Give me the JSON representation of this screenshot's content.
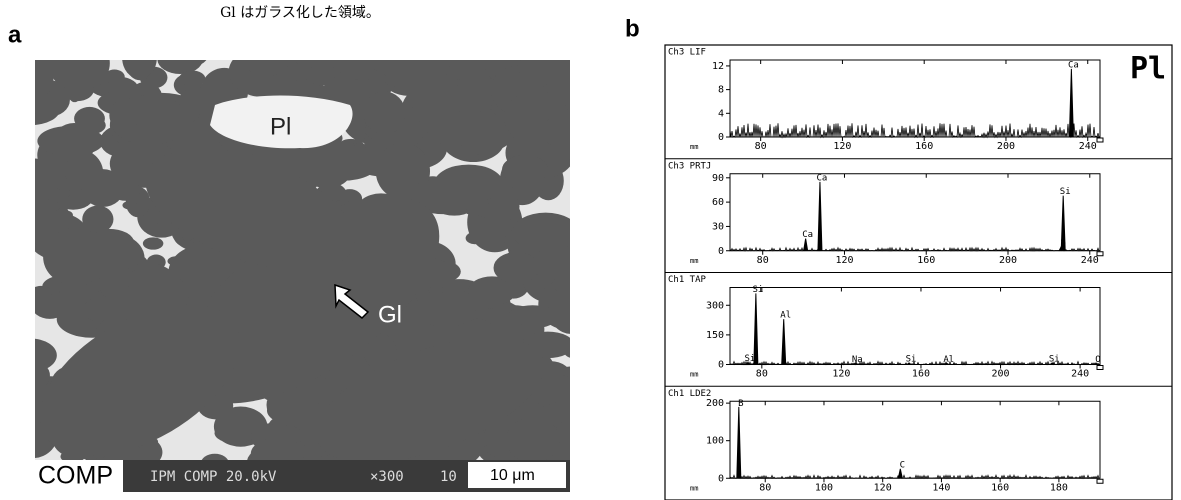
{
  "caption": "Gl はガラス化した領域。",
  "panel_a": {
    "label": "a",
    "micrograph": {
      "labels": [
        "Pl",
        "Gl"
      ],
      "footer": {
        "mode": "COMP",
        "info": "IPM COMP  20.0kV",
        "magnification": "×300",
        "number": "10",
        "scale": "10 μm"
      }
    }
  },
  "panel_b": {
    "label": "b",
    "side_label": "Pl",
    "x_unit": "mm",
    "spectra": [
      {
        "title": "Ch3 LIF",
        "xlim": [
          65,
          246
        ],
        "xticks": [
          80,
          120,
          160,
          200,
          240
        ],
        "ylim": [
          0,
          13
        ],
        "yticks": [
          0,
          4,
          8,
          12
        ],
        "peaks": [
          {
            "label": "Ca",
            "x": 232,
            "y": 11.5
          }
        ]
      },
      {
        "title": "Ch3 PRTJ",
        "xlim": [
          64,
          245
        ],
        "xticks": [
          80,
          120,
          160,
          200,
          240
        ],
        "ylim": [
          0,
          95
        ],
        "yticks": [
          0,
          30,
          60,
          90
        ],
        "peaks": [
          {
            "label": "Ca",
            "x": 101,
            "y": 15
          },
          {
            "label": "Ca",
            "x": 108,
            "y": 85
          },
          {
            "label": "S",
            "x": 226,
            "y": 5
          },
          {
            "label": "Si",
            "x": 227,
            "y": 68
          }
        ]
      },
      {
        "title": "Ch1 TAP",
        "xlim": [
          64,
          250
        ],
        "xticks": [
          80,
          120,
          160,
          200,
          240
        ],
        "ylim": [
          0,
          390
        ],
        "yticks": [
          0,
          150,
          300
        ],
        "peaks": [
          {
            "label": "Si",
            "x": 73,
            "y": 10
          },
          {
            "label": "Si",
            "x": 77,
            "y": 360
          },
          {
            "label": "Al",
            "x": 91,
            "y": 230
          },
          {
            "label": "Na",
            "x": 127,
            "y": 5
          },
          {
            "label": "Si",
            "x": 154,
            "y": 8
          },
          {
            "label": "Al",
            "x": 173,
            "y": 6
          },
          {
            "label": "Si",
            "x": 226,
            "y": 8
          },
          {
            "label": "O",
            "x": 248,
            "y": 5
          }
        ]
      },
      {
        "title": "Ch1 LDE2",
        "xlim": [
          68,
          194
        ],
        "xticks": [
          80,
          100,
          120,
          140,
          160,
          180
        ],
        "ylim": [
          0,
          205
        ],
        "yticks": [
          0,
          100,
          200
        ],
        "peaks": [
          {
            "label": "B",
            "x": 71,
            "y": 190
          },
          {
            "label": "C",
            "x": 126,
            "y": 25
          }
        ]
      }
    ]
  }
}
